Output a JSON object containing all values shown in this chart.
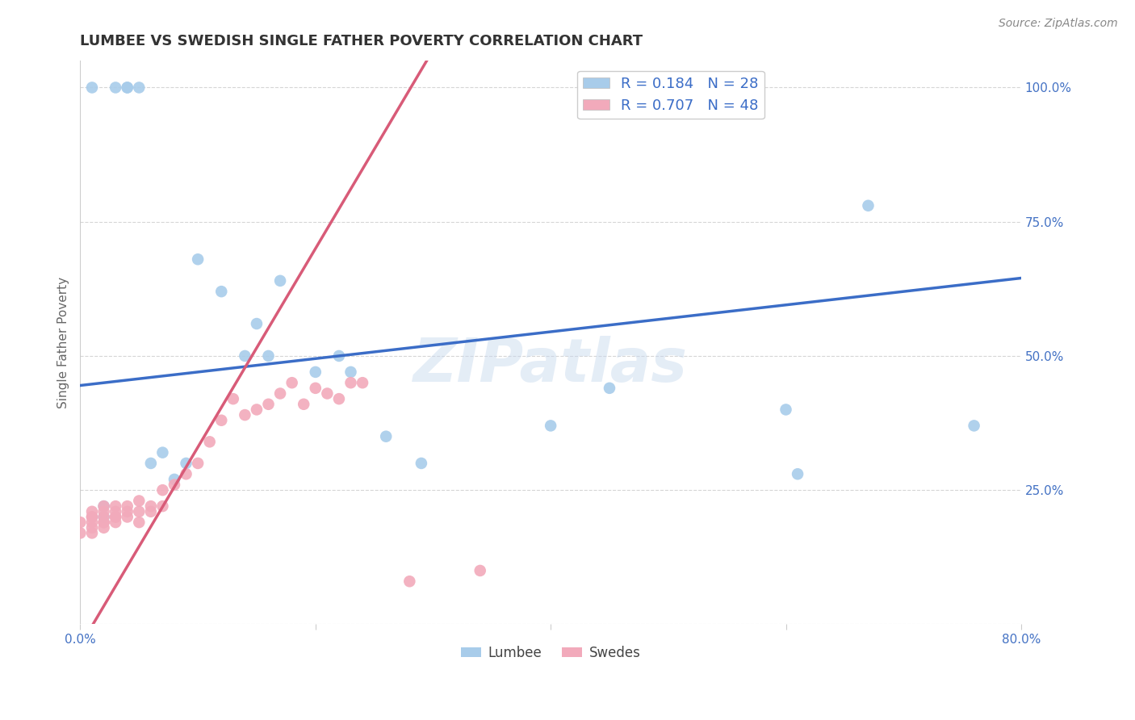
{
  "title": "LUMBEE VS SWEDISH SINGLE FATHER POVERTY CORRELATION CHART",
  "source": "Source: ZipAtlas.com",
  "ylabel": "Single Father Poverty",
  "xlim": [
    0.0,
    0.8
  ],
  "ylim": [
    0.0,
    1.05
  ],
  "lumbee_R": 0.184,
  "lumbee_N": 28,
  "swedes_R": 0.707,
  "swedes_N": 48,
  "lumbee_color": "#A8CCEA",
  "swedes_color": "#F2AABB",
  "lumbee_line_color": "#3B6DC7",
  "swedes_line_color": "#D85B78",
  "watermark": "ZIPatlas",
  "background_color": "#FFFFFF",
  "lumbee_x": [
    0.01,
    0.02,
    0.02,
    0.03,
    0.04,
    0.04,
    0.05,
    0.06,
    0.07,
    0.08,
    0.09,
    0.1,
    0.12,
    0.14,
    0.15,
    0.16,
    0.17,
    0.2,
    0.22,
    0.23,
    0.26,
    0.29,
    0.4,
    0.45,
    0.6,
    0.61,
    0.67,
    0.76
  ],
  "lumbee_y": [
    1.0,
    0.2,
    0.22,
    1.0,
    1.0,
    1.0,
    1.0,
    0.3,
    0.32,
    0.27,
    0.3,
    0.68,
    0.62,
    0.5,
    0.56,
    0.5,
    0.64,
    0.47,
    0.5,
    0.47,
    0.35,
    0.3,
    0.37,
    0.44,
    0.4,
    0.28,
    0.78,
    0.37
  ],
  "swedes_x": [
    0.0,
    0.0,
    0.01,
    0.01,
    0.01,
    0.01,
    0.01,
    0.01,
    0.02,
    0.02,
    0.02,
    0.02,
    0.02,
    0.02,
    0.03,
    0.03,
    0.03,
    0.03,
    0.03,
    0.04,
    0.04,
    0.04,
    0.05,
    0.05,
    0.05,
    0.06,
    0.06,
    0.07,
    0.07,
    0.08,
    0.09,
    0.1,
    0.11,
    0.12,
    0.13,
    0.14,
    0.15,
    0.16,
    0.17,
    0.18,
    0.19,
    0.2,
    0.21,
    0.22,
    0.23,
    0.24,
    0.28,
    0.34
  ],
  "swedes_y": [
    0.17,
    0.19,
    0.17,
    0.18,
    0.19,
    0.2,
    0.2,
    0.21,
    0.18,
    0.19,
    0.19,
    0.2,
    0.21,
    0.22,
    0.19,
    0.2,
    0.2,
    0.21,
    0.22,
    0.2,
    0.21,
    0.22,
    0.19,
    0.21,
    0.23,
    0.21,
    0.22,
    0.22,
    0.25,
    0.26,
    0.28,
    0.3,
    0.34,
    0.38,
    0.42,
    0.39,
    0.4,
    0.41,
    0.43,
    0.45,
    0.41,
    0.44,
    0.43,
    0.42,
    0.45,
    0.45,
    0.08,
    0.1
  ],
  "grid_color": "#CCCCCC",
  "title_fontsize": 13,
  "label_fontsize": 11,
  "tick_fontsize": 11
}
